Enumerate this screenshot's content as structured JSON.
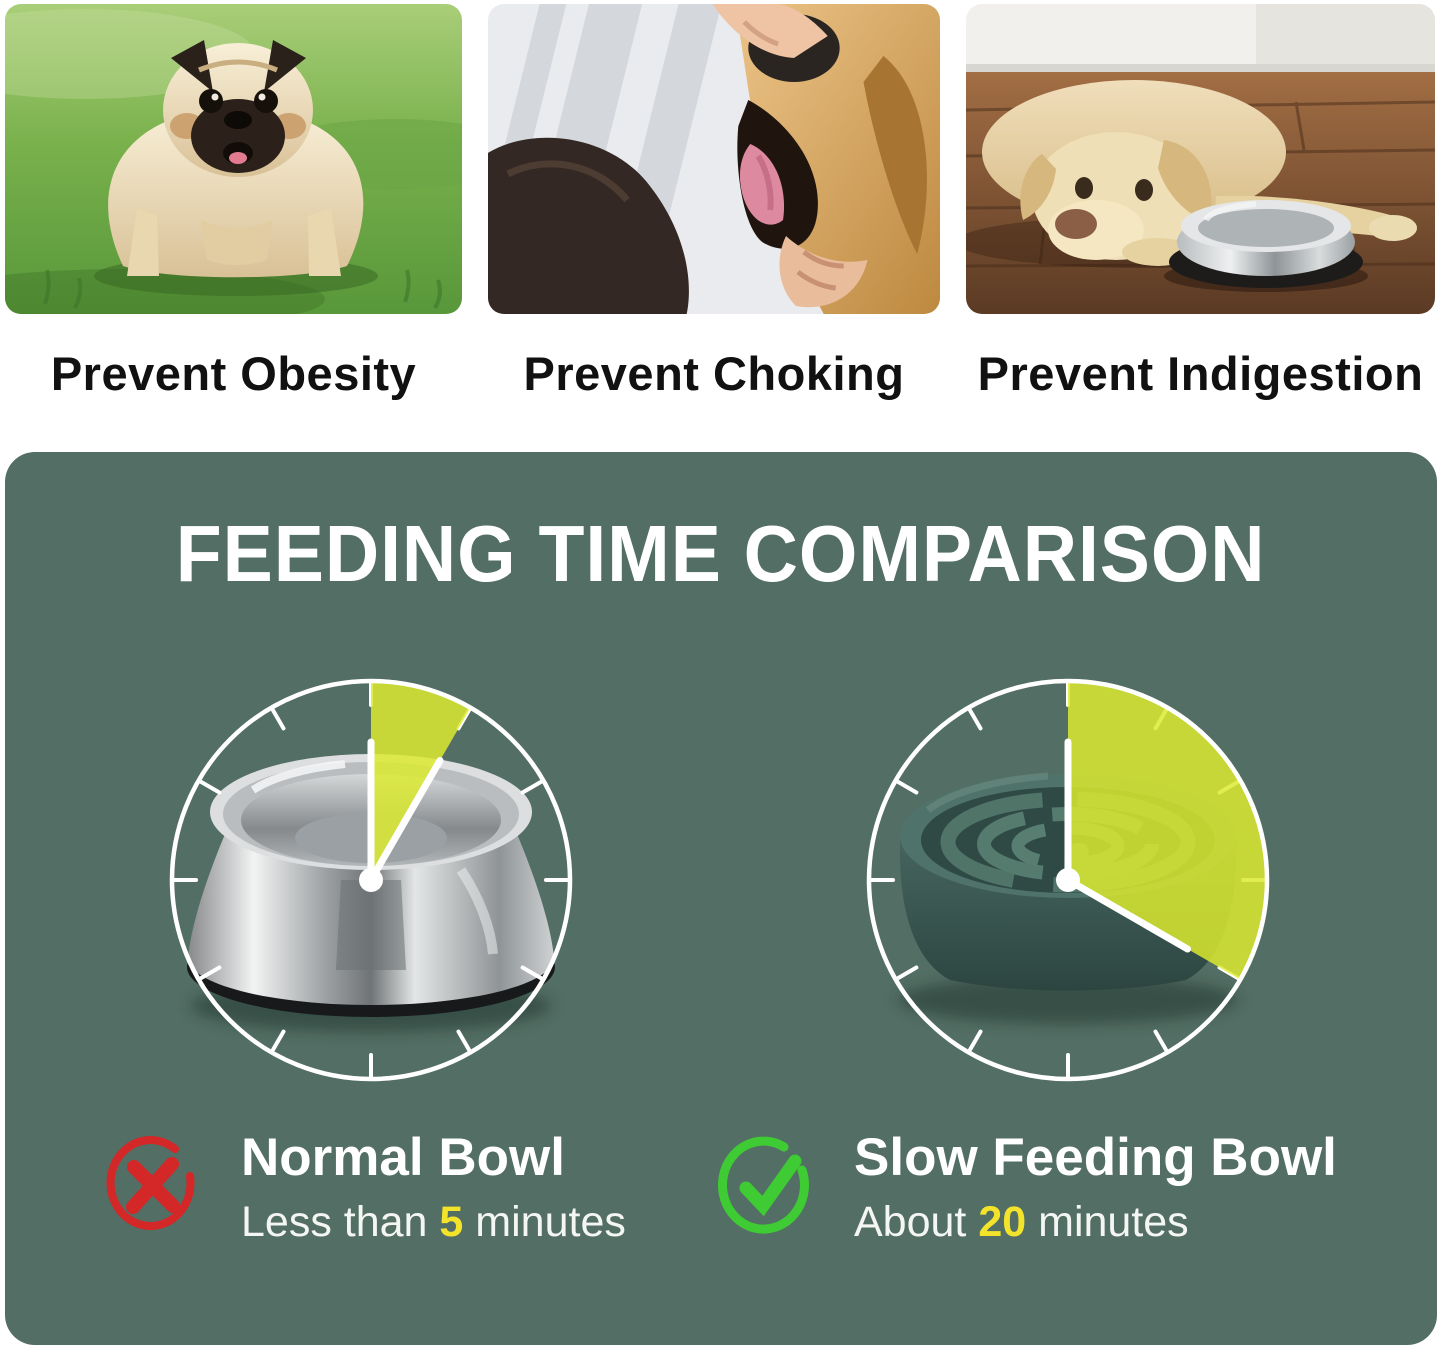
{
  "benefits": {
    "items": [
      {
        "id": "obesity",
        "caption": "Prevent Obesity",
        "photo_alt": "overweight pug dog standing on green grass"
      },
      {
        "id": "choking",
        "caption": "Prevent Choking",
        "photo_alt": "owner opening a golden retriever's mouth to check throat"
      },
      {
        "id": "indigestion",
        "caption": "Prevent Indigestion",
        "photo_alt": "labrador lying on wooden floor beside a stainless steel bowl"
      }
    ]
  },
  "panel": {
    "title": "FEEDING TIME COMPARISON",
    "clock_minutes_total": 60,
    "colors": {
      "panel_bg": "#536e64",
      "wedge": "#dceb2e",
      "highlight_yellow": "#f3e32b",
      "cross_red": "#d42728",
      "check_green": "#3ecb33",
      "clock_line": "#ffffff"
    },
    "comparison": [
      {
        "name": "Normal Bowl",
        "bowl": "stainless-steel-bowl",
        "minutes": 5,
        "time_prefix": "Less than ",
        "time_value": "5",
        "time_suffix": " minutes",
        "verdict": "cross"
      },
      {
        "name": "Slow Feeding Bowl",
        "bowl": "slow-feeder-maze-bowl",
        "minutes": 20,
        "time_prefix": "About ",
        "time_value": "20",
        "time_suffix": " minutes",
        "verdict": "check"
      }
    ]
  }
}
